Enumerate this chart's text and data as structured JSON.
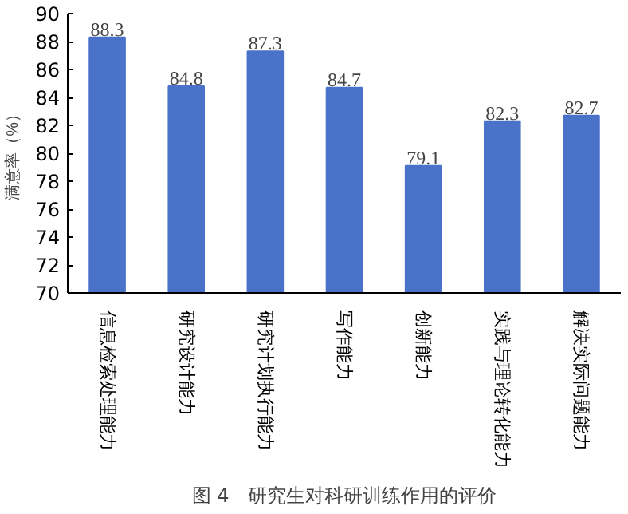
{
  "chart_data": {
    "type": "bar",
    "title": "图 4　研究生对科研训练作用的评价",
    "ylabel": "满意率（%）",
    "categories": [
      "信息检索处理能力",
      "研究设计能力",
      "研究计划执行能力",
      "写作能力",
      "创新能力",
      "实践与理论转化能力",
      "解决实际问题能力"
    ],
    "values": [
      88.3,
      84.8,
      87.3,
      84.7,
      79.1,
      82.3,
      82.7
    ],
    "color": "#4a72c9",
    "ylim": [
      70,
      90
    ],
    "yticks": [
      70,
      72,
      74,
      76,
      78,
      80,
      82,
      84,
      86,
      88,
      90
    ],
    "grid": false,
    "data_labels": true
  }
}
